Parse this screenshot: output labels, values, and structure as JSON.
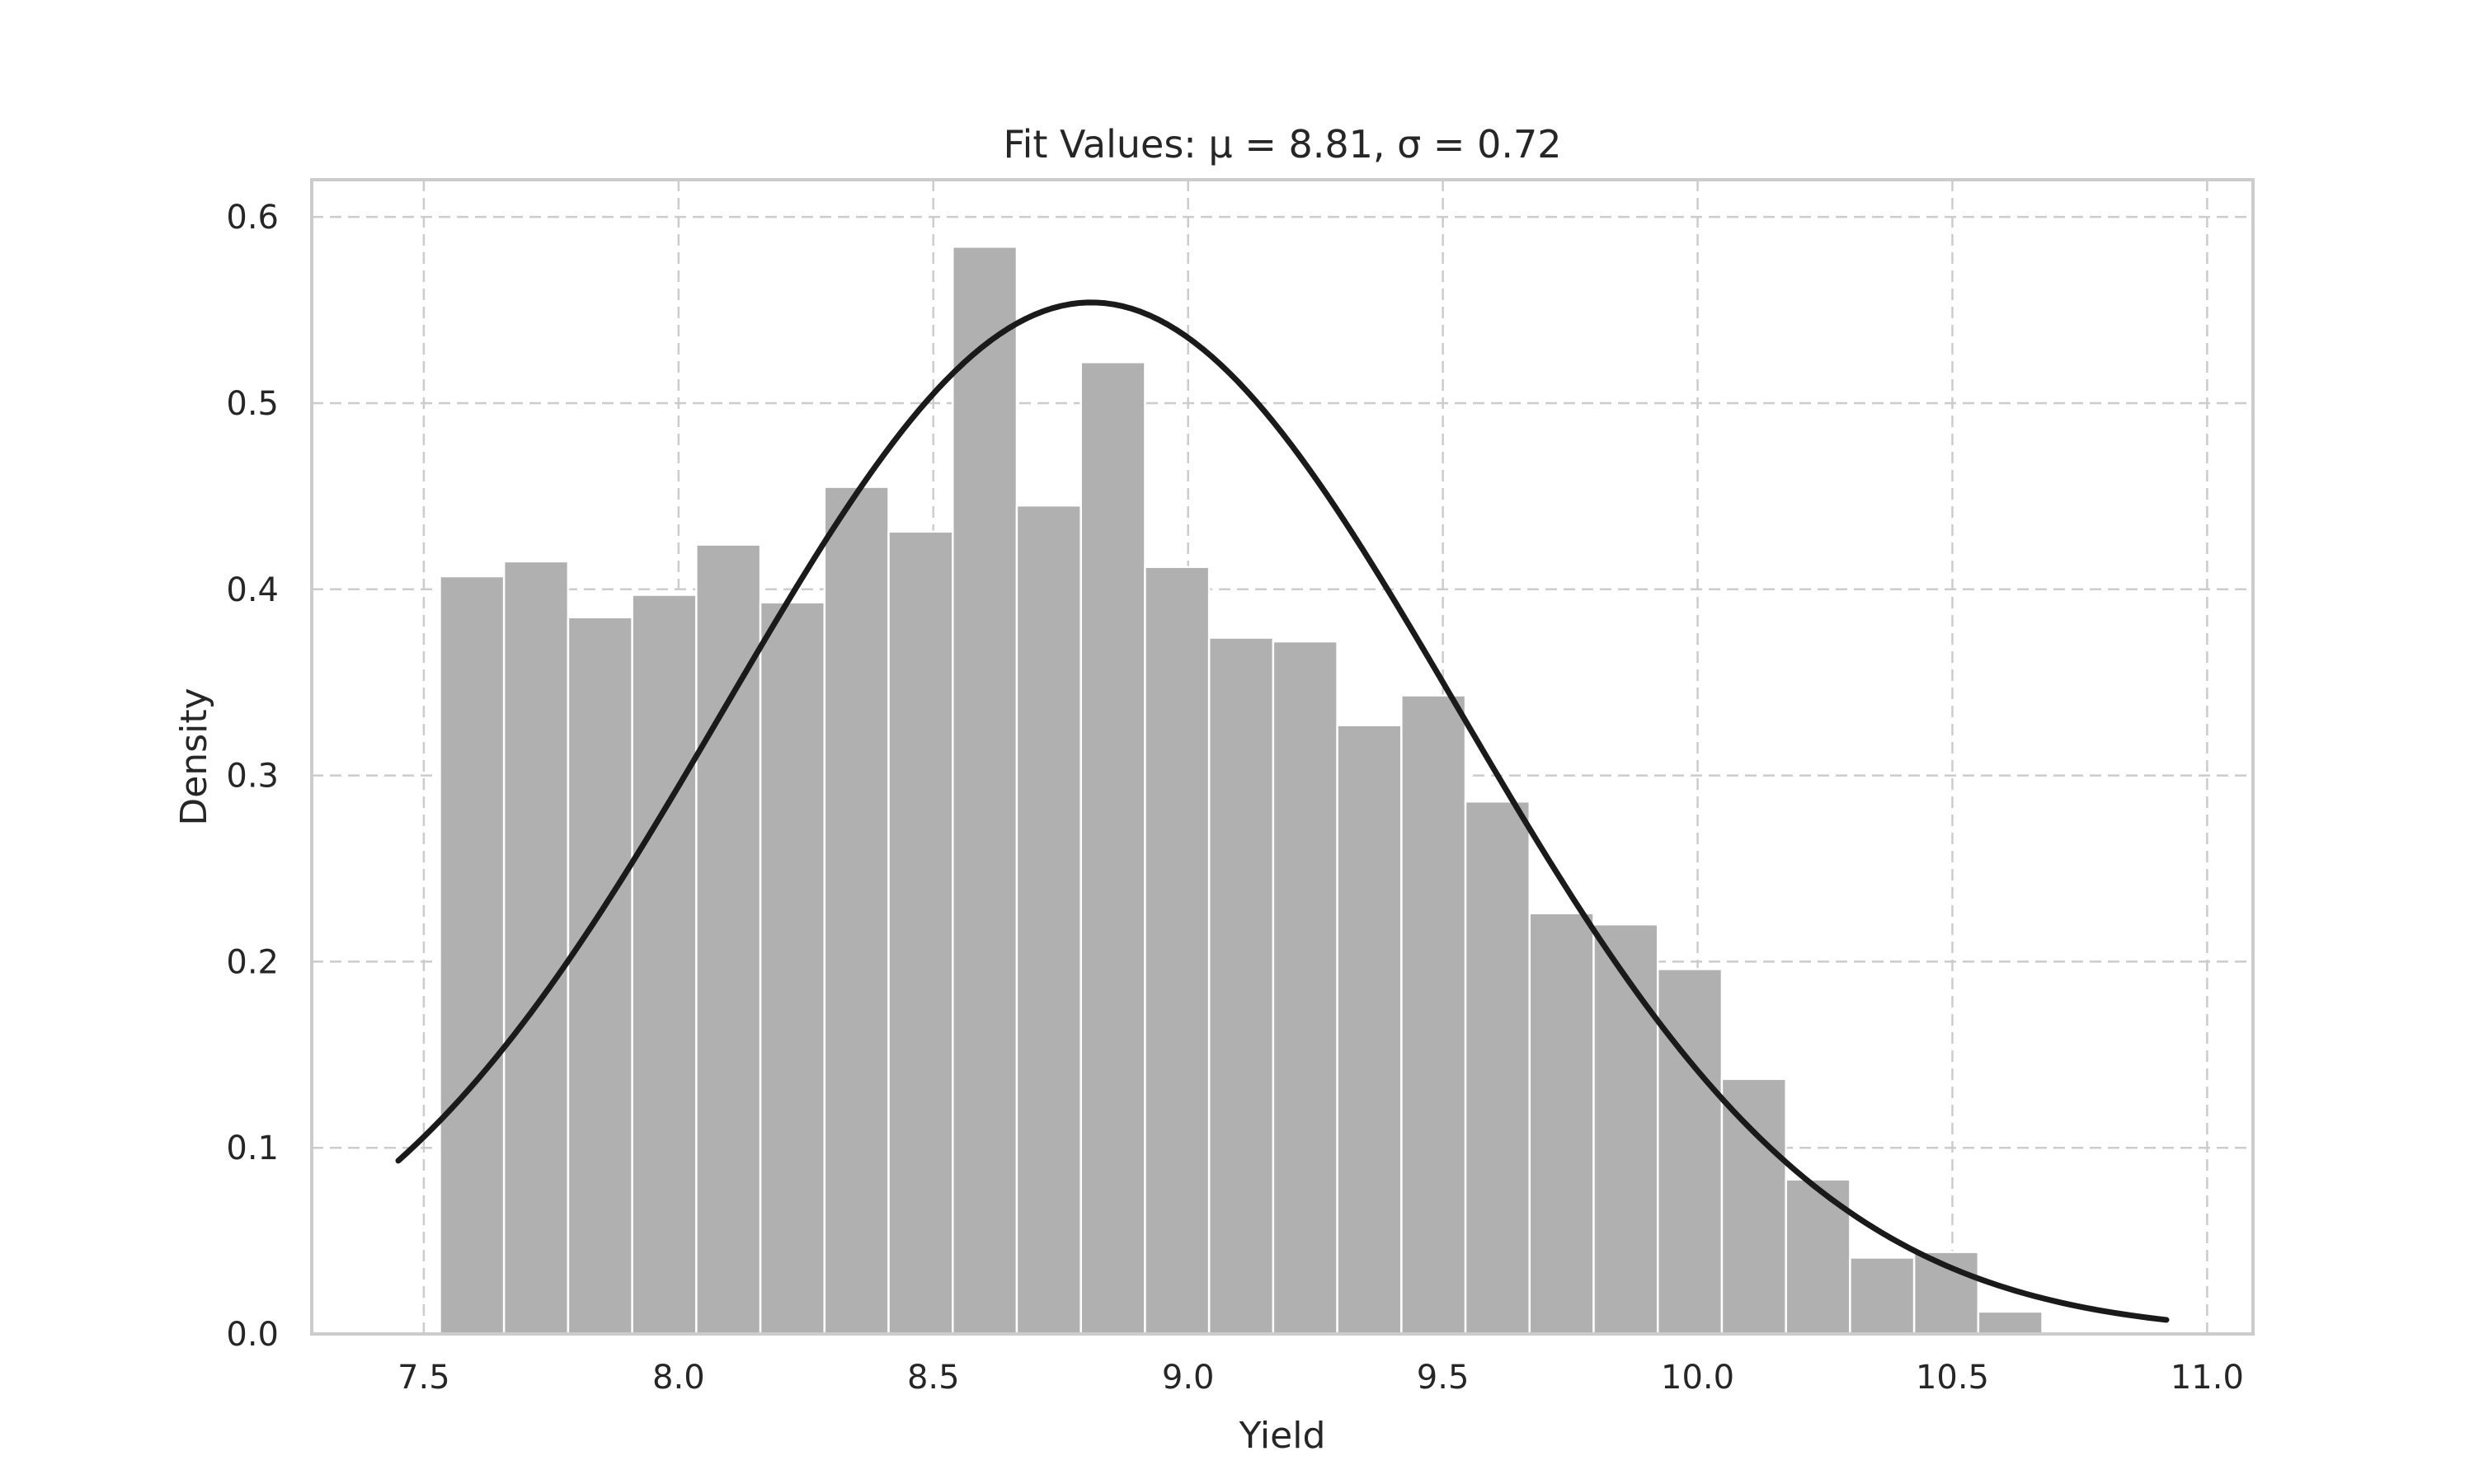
{
  "chart_data": {
    "type": "bar",
    "subtype": "histogram-with-normal-fit",
    "title": "Fit Values: μ = 8.81, σ = 0.72",
    "xlabel": "Yield",
    "ylabel": "Density",
    "xlim": [
      7.28,
      11.09
    ],
    "ylim": [
      0.0,
      0.62
    ],
    "xticks": [
      7.5,
      8.0,
      8.5,
      9.0,
      9.5,
      10.0,
      10.5,
      11.0
    ],
    "xtick_labels": [
      "7.5",
      "8.0",
      "8.5",
      "9.0",
      "9.5",
      "10.0",
      "10.5",
      "11.0"
    ],
    "yticks": [
      0.0,
      0.1,
      0.2,
      0.3,
      0.4,
      0.5,
      0.6
    ],
    "ytick_labels": [
      "0.0",
      "0.1",
      "0.2",
      "0.3",
      "0.4",
      "0.5",
      "0.6"
    ],
    "grid": true,
    "bin_edges": [
      7.28,
      7.4058,
      7.5316,
      7.6574,
      7.7832,
      7.909,
      8.0348,
      8.1606,
      8.2864,
      8.4122,
      8.538,
      8.6638,
      8.7896,
      8.9154,
      9.0412,
      9.167,
      9.2928,
      9.4186,
      9.5444,
      9.6702,
      9.796,
      9.9218,
      10.0476,
      10.1734,
      10.2992,
      10.425,
      10.5508,
      10.6766,
      10.8024
    ],
    "densities": [
      0.0,
      0.0,
      0.407,
      0.415,
      0.385,
      0.397,
      0.424,
      0.393,
      0.455,
      0.431,
      0.584,
      0.445,
      0.522,
      0.412,
      0.374,
      0.372,
      0.327,
      0.343,
      0.286,
      0.226,
      0.22,
      0.196,
      0.137,
      0.083,
      0.041,
      0.044,
      0.012,
      0.0
    ],
    "fit": {
      "distribution": "normal",
      "mu": 8.81,
      "sigma": 0.72,
      "x_range": [
        7.45,
        10.92
      ]
    },
    "colors": {
      "bars": "#b0b0b0",
      "bar_edge": "#ffffff",
      "curve": "#1a1a1a",
      "grid": "#cccccc",
      "frame": "#cccccc"
    }
  }
}
